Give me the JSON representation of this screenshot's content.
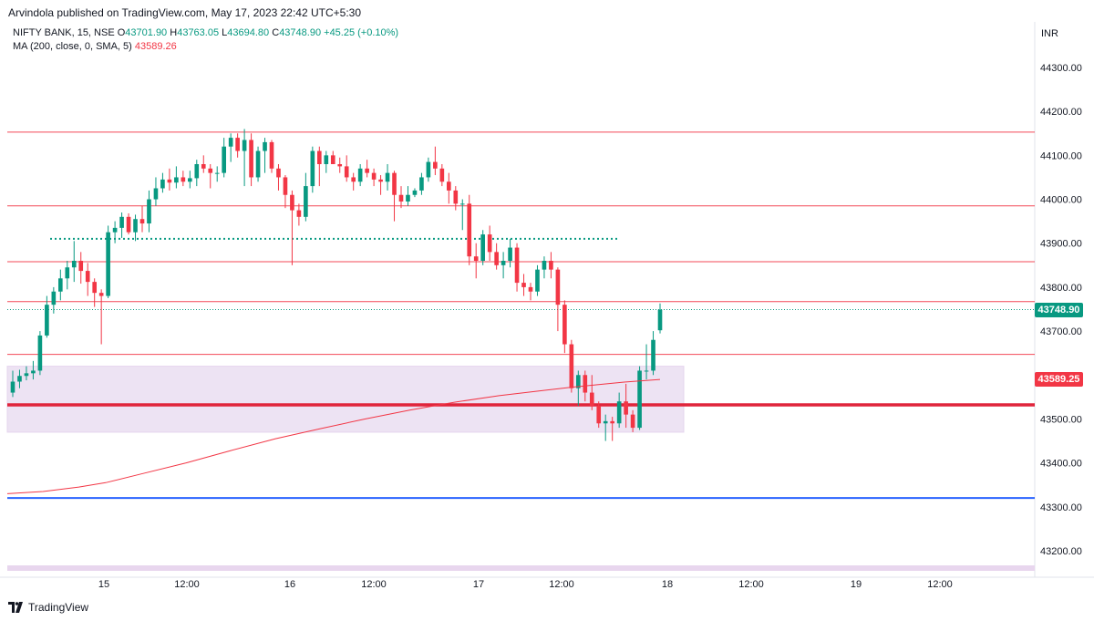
{
  "header": {
    "published": "Arvindola published on TradingView.com, May 17, 2023 22:42 UTC+5:30"
  },
  "legend": {
    "symbol": "NIFTY BANK, 15, NSE",
    "open_label": "O",
    "open": "43701.90",
    "high_label": "H",
    "high": "43763.05",
    "low_label": "L",
    "low": "43694.80",
    "close_label": "C",
    "close": "43748.90",
    "change": "+45.25 (+0.10%)",
    "ma_label": "MA (200, close, 0, SMA, 5)",
    "ma_value": "43589.26"
  },
  "currency": "INR",
  "footer": {
    "brand": "TradingView"
  },
  "colors": {
    "up": "#089981",
    "down": "#f23645",
    "ma": "#f23645",
    "hline": "#f23645",
    "support": "#e0243b",
    "blue_line": "#2962ff",
    "zone": "#ede3f3",
    "dotted": "#089981",
    "bottom_band": "#e8d6ee"
  },
  "chart_data": {
    "type": "candlestick",
    "instrument": "NIFTY BANK",
    "timeframe": "15",
    "exchange": "NSE",
    "ylim": [
      43150,
      44350
    ],
    "y_ticks": [
      "44300.00",
      "44200.00",
      "44100.00",
      "44000.00",
      "43900.00",
      "43800.00",
      "43700.00",
      "43600.00",
      "43500.00",
      "43400.00",
      "43300.00",
      "43200.00"
    ],
    "x_ticks": [
      "15",
      "12:00",
      "16",
      "12:00",
      "17",
      "12:00",
      "18",
      "12:00",
      "19",
      "12:00"
    ],
    "last_price_label": "43748.90",
    "ma_price_label": "43589.25",
    "horizontal_levels": [
      44153,
      43985,
      43858,
      43767,
      43647
    ],
    "support_level": 43532,
    "blue_level": 43320,
    "dotted_level": 43910,
    "zone": [
      43470,
      43620
    ],
    "candles": [
      {
        "o": 43560,
        "h": 43610,
        "l": 43550,
        "c": 43585
      },
      {
        "o": 43585,
        "h": 43612,
        "l": 43570,
        "c": 43598
      },
      {
        "o": 43598,
        "h": 43620,
        "l": 43588,
        "c": 43604
      },
      {
        "o": 43604,
        "h": 43632,
        "l": 43590,
        "c": 43610
      },
      {
        "o": 43610,
        "h": 43700,
        "l": 43600,
        "c": 43690
      },
      {
        "o": 43690,
        "h": 43780,
        "l": 43685,
        "c": 43760
      },
      {
        "o": 43760,
        "h": 43800,
        "l": 43740,
        "c": 43790
      },
      {
        "o": 43790,
        "h": 43840,
        "l": 43770,
        "c": 43820
      },
      {
        "o": 43820,
        "h": 43860,
        "l": 43795,
        "c": 43845
      },
      {
        "o": 43845,
        "h": 43905,
        "l": 43812,
        "c": 43860
      },
      {
        "o": 43860,
        "h": 43880,
        "l": 43808,
        "c": 43837
      },
      {
        "o": 43837,
        "h": 43855,
        "l": 43780,
        "c": 43812
      },
      {
        "o": 43812,
        "h": 43820,
        "l": 43755,
        "c": 43787
      },
      {
        "o": 43787,
        "h": 43795,
        "l": 43670,
        "c": 43780
      },
      {
        "o": 43780,
        "h": 43940,
        "l": 43775,
        "c": 43925
      },
      {
        "o": 43925,
        "h": 43950,
        "l": 43900,
        "c": 43935
      },
      {
        "o": 43935,
        "h": 43970,
        "l": 43912,
        "c": 43960
      },
      {
        "o": 43960,
        "h": 43968,
        "l": 43920,
        "c": 43925
      },
      {
        "o": 43925,
        "h": 43965,
        "l": 43905,
        "c": 43955
      },
      {
        "o": 43955,
        "h": 43985,
        "l": 43925,
        "c": 43945
      },
      {
        "o": 43945,
        "h": 44020,
        "l": 43925,
        "c": 44000
      },
      {
        "o": 44000,
        "h": 44050,
        "l": 43985,
        "c": 44025
      },
      {
        "o": 44025,
        "h": 44060,
        "l": 44015,
        "c": 44045
      },
      {
        "o": 44045,
        "h": 44070,
        "l": 44020,
        "c": 44038
      },
      {
        "o": 44038,
        "h": 44075,
        "l": 44025,
        "c": 44050
      },
      {
        "o": 44050,
        "h": 44065,
        "l": 44030,
        "c": 44040
      },
      {
        "o": 44040,
        "h": 44065,
        "l": 44025,
        "c": 44048
      },
      {
        "o": 44048,
        "h": 44090,
        "l": 44030,
        "c": 44080
      },
      {
        "o": 44080,
        "h": 44100,
        "l": 44060,
        "c": 44070
      },
      {
        "o": 44070,
        "h": 44080,
        "l": 44025,
        "c": 44060
      },
      {
        "o": 44060,
        "h": 44075,
        "l": 44040,
        "c": 44060
      },
      {
        "o": 44060,
        "h": 44140,
        "l": 44050,
        "c": 44120
      },
      {
        "o": 44120,
        "h": 44150,
        "l": 44085,
        "c": 44140
      },
      {
        "o": 44140,
        "h": 44150,
        "l": 44095,
        "c": 44110
      },
      {
        "o": 44110,
        "h": 44160,
        "l": 44030,
        "c": 44135
      },
      {
        "o": 44135,
        "h": 44150,
        "l": 44030,
        "c": 44050
      },
      {
        "o": 44050,
        "h": 44120,
        "l": 44040,
        "c": 44110
      },
      {
        "o": 44110,
        "h": 44140,
        "l": 44060,
        "c": 44130
      },
      {
        "o": 44130,
        "h": 44135,
        "l": 44060,
        "c": 44070
      },
      {
        "o": 44070,
        "h": 44080,
        "l": 44020,
        "c": 44050
      },
      {
        "o": 44050,
        "h": 44055,
        "l": 43980,
        "c": 44010
      },
      {
        "o": 44010,
        "h": 44020,
        "l": 43850,
        "c": 43975
      },
      {
        "o": 43975,
        "h": 43990,
        "l": 43940,
        "c": 43960
      },
      {
        "o": 43960,
        "h": 44060,
        "l": 43950,
        "c": 44030
      },
      {
        "o": 44030,
        "h": 44120,
        "l": 44015,
        "c": 44110
      },
      {
        "o": 44110,
        "h": 44120,
        "l": 44030,
        "c": 44080
      },
      {
        "o": 44080,
        "h": 44110,
        "l": 44060,
        "c": 44100
      },
      {
        "o": 44100,
        "h": 44110,
        "l": 44080,
        "c": 44080
      },
      {
        "o": 44080,
        "h": 44095,
        "l": 44060,
        "c": 44075
      },
      {
        "o": 44075,
        "h": 44100,
        "l": 44040,
        "c": 44050
      },
      {
        "o": 44050,
        "h": 44060,
        "l": 44020,
        "c": 44040
      },
      {
        "o": 44040,
        "h": 44080,
        "l": 44030,
        "c": 44070
      },
      {
        "o": 44070,
        "h": 44090,
        "l": 44050,
        "c": 44060
      },
      {
        "o": 44060,
        "h": 44070,
        "l": 44030,
        "c": 44045
      },
      {
        "o": 44045,
        "h": 44055,
        "l": 44010,
        "c": 44040
      },
      {
        "o": 44040,
        "h": 44080,
        "l": 44020,
        "c": 44060
      },
      {
        "o": 44060,
        "h": 44065,
        "l": 43950,
        "c": 44010
      },
      {
        "o": 44010,
        "h": 44030,
        "l": 43980,
        "c": 43995
      },
      {
        "o": 43995,
        "h": 44030,
        "l": 43985,
        "c": 44010
      },
      {
        "o": 44010,
        "h": 44025,
        "l": 44005,
        "c": 44020
      },
      {
        "o": 44020,
        "h": 44060,
        "l": 44010,
        "c": 44050
      },
      {
        "o": 44050,
        "h": 44095,
        "l": 44040,
        "c": 44085
      },
      {
        "o": 44085,
        "h": 44120,
        "l": 44055,
        "c": 44070
      },
      {
        "o": 44070,
        "h": 44080,
        "l": 44030,
        "c": 44040
      },
      {
        "o": 44040,
        "h": 44060,
        "l": 43990,
        "c": 44020
      },
      {
        "o": 44020,
        "h": 44030,
        "l": 43975,
        "c": 43990
      },
      {
        "o": 43990,
        "h": 44000,
        "l": 43930,
        "c": 43990
      },
      {
        "o": 43990,
        "h": 44010,
        "l": 43850,
        "c": 43870
      },
      {
        "o": 43870,
        "h": 43900,
        "l": 43820,
        "c": 43860
      },
      {
        "o": 43860,
        "h": 43930,
        "l": 43850,
        "c": 43920
      },
      {
        "o": 43920,
        "h": 43940,
        "l": 43860,
        "c": 43880
      },
      {
        "o": 43880,
        "h": 43900,
        "l": 43840,
        "c": 43850
      },
      {
        "o": 43850,
        "h": 43880,
        "l": 43820,
        "c": 43860
      },
      {
        "o": 43860,
        "h": 43910,
        "l": 43845,
        "c": 43890
      },
      {
        "o": 43890,
        "h": 43900,
        "l": 43790,
        "c": 43810
      },
      {
        "o": 43810,
        "h": 43830,
        "l": 43780,
        "c": 43800
      },
      {
        "o": 43800,
        "h": 43810,
        "l": 43770,
        "c": 43790
      },
      {
        "o": 43790,
        "h": 43850,
        "l": 43780,
        "c": 43840
      },
      {
        "o": 43840,
        "h": 43870,
        "l": 43820,
        "c": 43860
      },
      {
        "o": 43860,
        "h": 43880,
        "l": 43820,
        "c": 43840
      },
      {
        "o": 43840,
        "h": 43845,
        "l": 43700,
        "c": 43760
      },
      {
        "o": 43760,
        "h": 43770,
        "l": 43650,
        "c": 43670
      },
      {
        "o": 43670,
        "h": 43680,
        "l": 43560,
        "c": 43570
      },
      {
        "o": 43570,
        "h": 43610,
        "l": 43530,
        "c": 43600
      },
      {
        "o": 43600,
        "h": 43610,
        "l": 43540,
        "c": 43560
      },
      {
        "o": 43560,
        "h": 43600,
        "l": 43520,
        "c": 43530
      },
      {
        "o": 43530,
        "h": 43540,
        "l": 43480,
        "c": 43490
      },
      {
        "o": 43490,
        "h": 43510,
        "l": 43450,
        "c": 43495
      },
      {
        "o": 43495,
        "h": 43505,
        "l": 43450,
        "c": 43490
      },
      {
        "o": 43490,
        "h": 43560,
        "l": 43480,
        "c": 43540
      },
      {
        "o": 43540,
        "h": 43580,
        "l": 43480,
        "c": 43510
      },
      {
        "o": 43510,
        "h": 43520,
        "l": 43470,
        "c": 43480
      },
      {
        "o": 43480,
        "h": 43620,
        "l": 43475,
        "c": 43610
      },
      {
        "o": 43610,
        "h": 43670,
        "l": 43590,
        "c": 43610
      },
      {
        "o": 43610,
        "h": 43700,
        "l": 43600,
        "c": 43680
      },
      {
        "o": 43701.9,
        "h": 43763.05,
        "l": 43694.8,
        "c": 43748.9
      }
    ],
    "ma_series": {
      "name": "MA (200, close, 0, SMA, 5)",
      "points": [
        [
          0,
          43330
        ],
        [
          8,
          43335
        ],
        [
          16,
          43345
        ],
        [
          22,
          43355
        ],
        [
          30,
          43375
        ],
        [
          40,
          43400
        ],
        [
          50,
          43428
        ],
        [
          60,
          43455
        ],
        [
          70,
          43478
        ],
        [
          80,
          43500
        ],
        [
          90,
          43520
        ],
        [
          100,
          43538
        ],
        [
          110,
          43553
        ],
        [
          120,
          43565
        ],
        [
          126,
          43572
        ],
        [
          132,
          43578
        ],
        [
          138,
          43584
        ],
        [
          146,
          43590
        ]
      ]
    }
  }
}
